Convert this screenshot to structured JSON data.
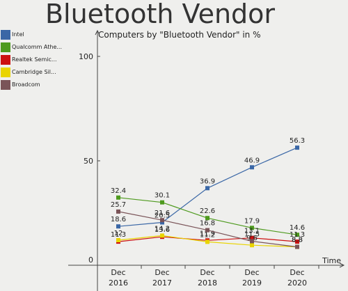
{
  "title": "Bluetooth Vendor",
  "subtitle": "Computers by \"Bluetooth Vendor\" in %",
  "chart_data": {
    "type": "line",
    "categories": [
      "Dec\n2016",
      "Dec\n2017",
      "Dec\n2018",
      "Dec\n2019",
      "Dec\n2020"
    ],
    "xlabel": "Time",
    "ylabel": "",
    "yticks": [
      0,
      50,
      100
    ],
    "ylim": [
      0,
      110
    ],
    "legend_position": "left",
    "series": [
      {
        "name": "Intel",
        "legend_label": "Intel",
        "color": "#3a67a6",
        "values": [
          18.6,
          20.5,
          36.9,
          46.9,
          56.3
        ]
      },
      {
        "name": "Qualcomm Atheros",
        "legend_label": "Qualcomm Athe...",
        "color": "#4e9a1e",
        "values": [
          32.4,
          30.1,
          22.6,
          17.9,
          14.6
        ]
      },
      {
        "name": "Realtek Semiconductor",
        "legend_label": "Realtek Semic...",
        "color": "#cc1010",
        "values": [
          11.3,
          13.6,
          11.9,
          13.1,
          11.3
        ]
      },
      {
        "name": "Cambridge Silicon Radio",
        "legend_label": "Cambridge Sil...",
        "color": "#e9d400",
        "values": [
          12,
          14.2,
          11.2,
          9.6,
          8.8
        ]
      },
      {
        "name": "Broadcom",
        "legend_label": "Broadcom",
        "color": "#7a5458",
        "values": [
          25.7,
          21.6,
          16.8,
          11.5,
          8.8
        ]
      }
    ]
  }
}
